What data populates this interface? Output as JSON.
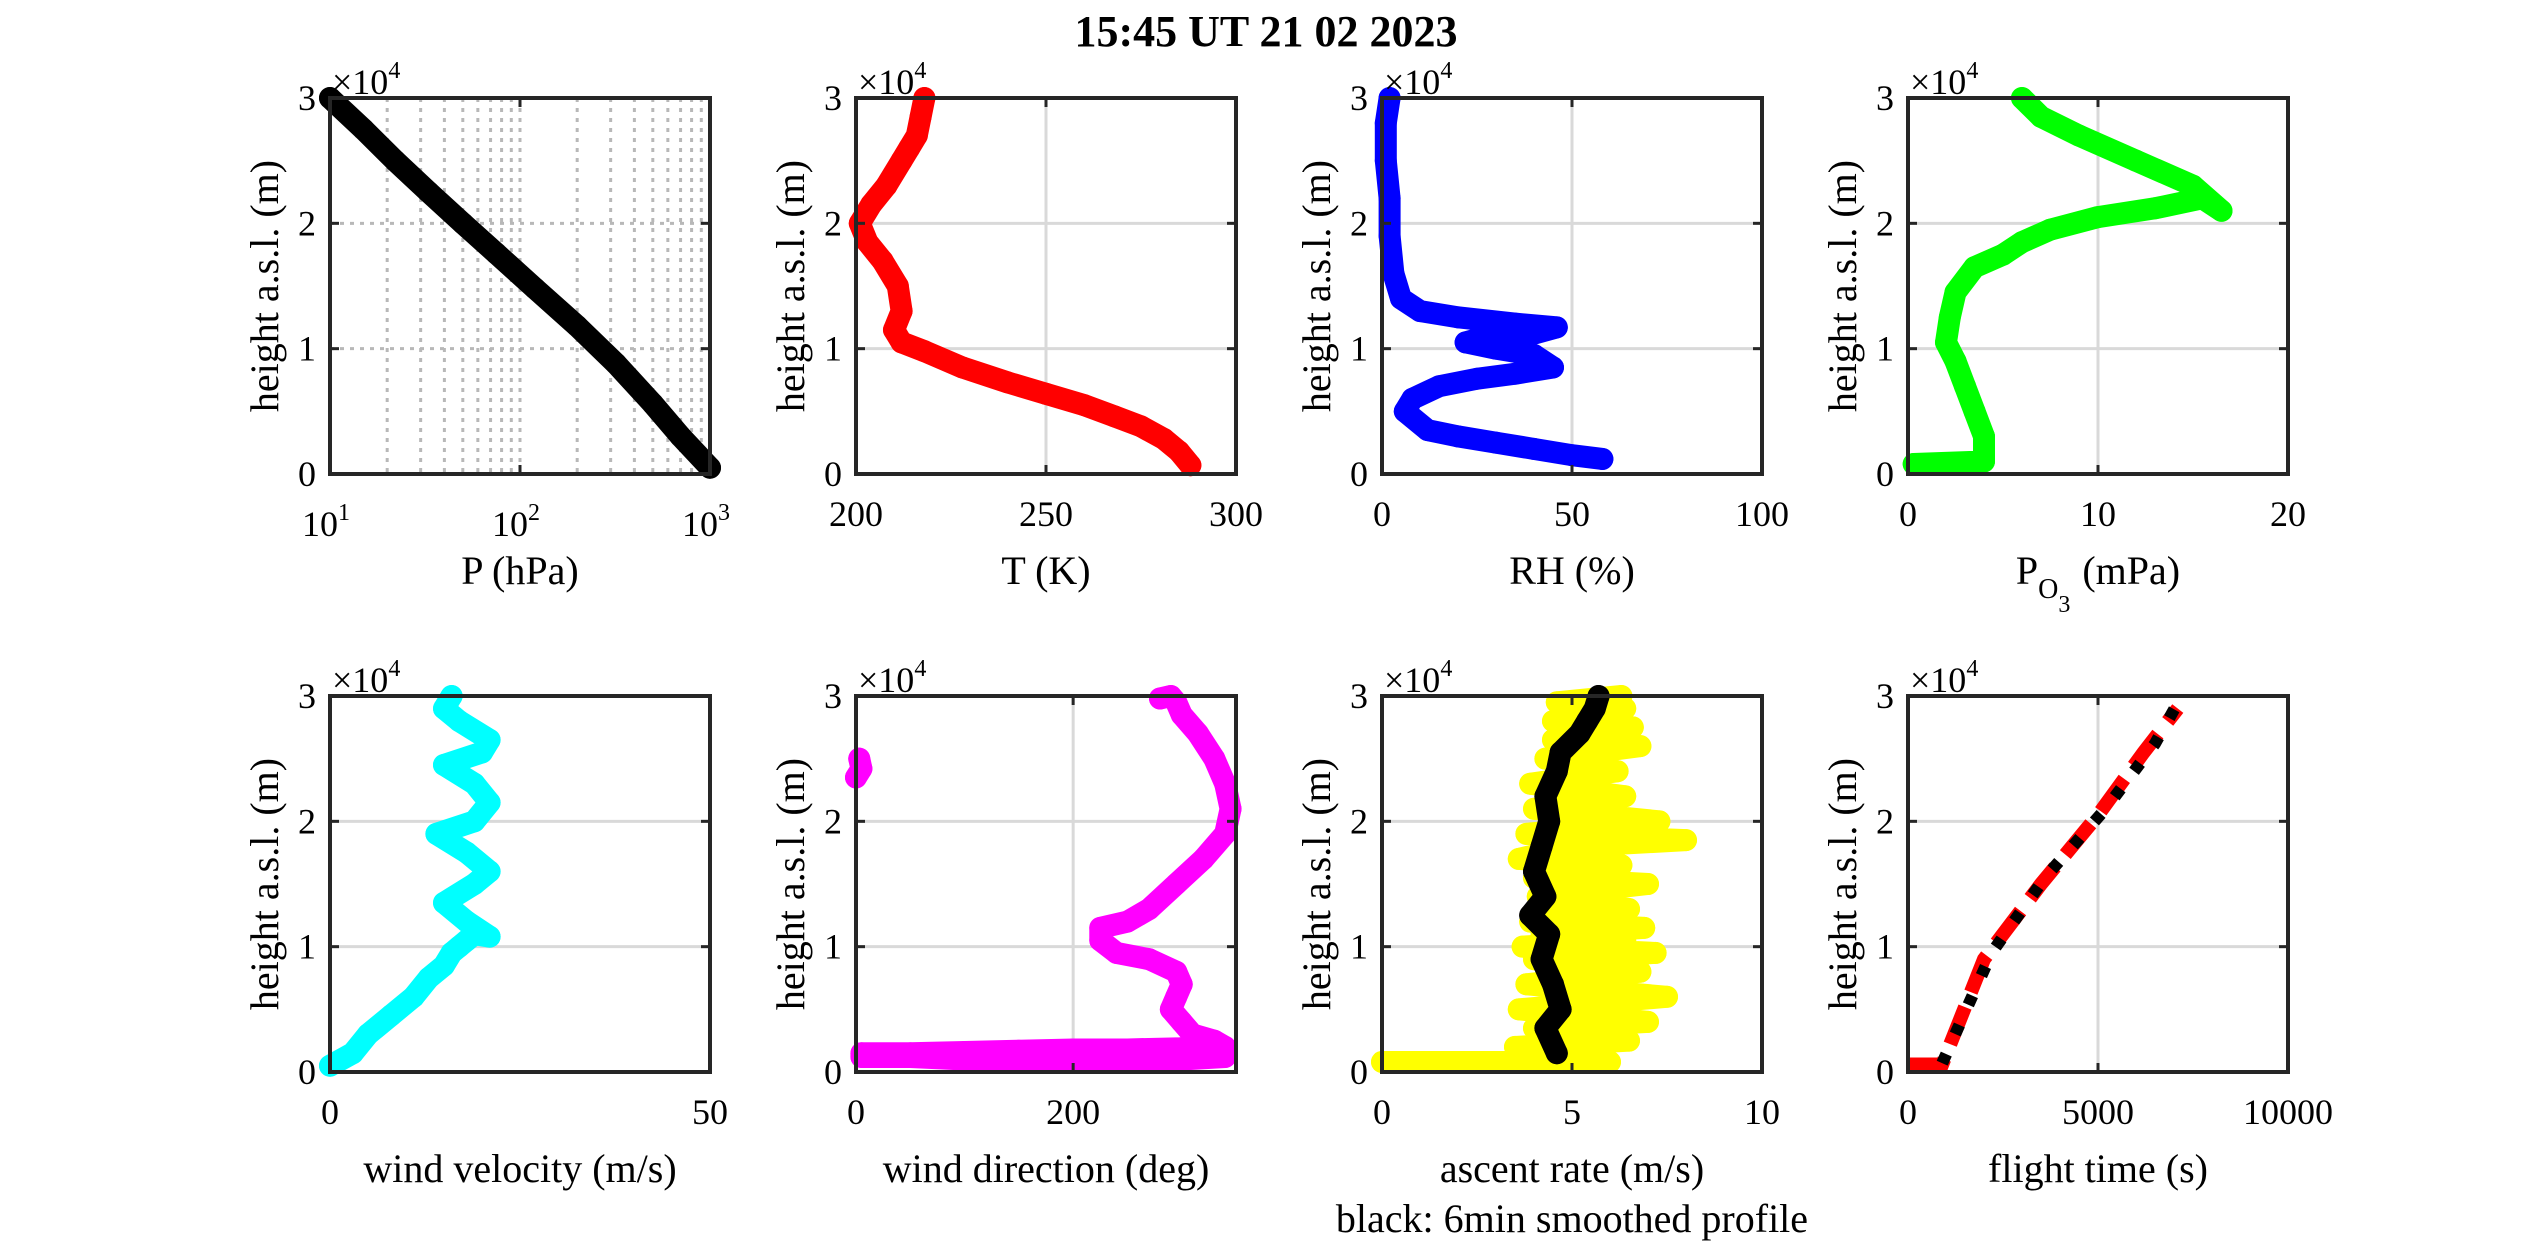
{
  "figure": {
    "title": "15:45 UT  21 02 2023"
  },
  "chart_data": [
    {
      "type": "scatter",
      "id": "pressure",
      "xlabel": "P (hPa)",
      "ylabel": "height a.s.l. (m)",
      "y_exponent": "×10",
      "y_exponent_power": "4",
      "xscale": "log",
      "xlim": [
        10,
        1000
      ],
      "ylim": [
        0,
        3
      ],
      "xticks": [
        {
          "v": 10,
          "base": "10",
          "pow": "1"
        },
        {
          "v": 100,
          "base": "10",
          "pow": "2"
        },
        {
          "v": 1000,
          "base": "10",
          "pow": "3"
        }
      ],
      "yticks": [
        {
          "v": 0,
          "label": "0"
        },
        {
          "v": 1,
          "label": "1"
        },
        {
          "v": 2,
          "label": "2"
        },
        {
          "v": 3,
          "label": "3"
        }
      ],
      "grid": "log-minor-dotted",
      "series": [
        {
          "color": "#000000",
          "x": [
            10,
            15,
            22,
            33,
            50,
            75,
            120,
            200,
            320,
            500,
            700,
            1000
          ],
          "y": [
            3,
            2.75,
            2.5,
            2.25,
            2,
            1.76,
            1.48,
            1.18,
            0.88,
            0.56,
            0.3,
            0.05
          ]
        }
      ]
    },
    {
      "type": "scatter",
      "id": "temperature",
      "xlabel": "T (K)",
      "ylabel": "height a.s.l. (m)",
      "y_exponent": "×10",
      "y_exponent_power": "4",
      "xlim": [
        200,
        300
      ],
      "ylim": [
        0,
        3
      ],
      "xticks": [
        {
          "v": 200,
          "label": "200"
        },
        {
          "v": 250,
          "label": "250"
        },
        {
          "v": 300,
          "label": "300"
        }
      ],
      "yticks": [
        {
          "v": 0,
          "label": "0"
        },
        {
          "v": 1,
          "label": "1"
        },
        {
          "v": 2,
          "label": "2"
        },
        {
          "v": 3,
          "label": "3"
        }
      ],
      "grid": "major",
      "series": [
        {
          "color": "#ff0000",
          "x": [
            288,
            285,
            281,
            275,
            268,
            260,
            250,
            240,
            228,
            218,
            212,
            210,
            212,
            211,
            207,
            203,
            201,
            204,
            208,
            212,
            214,
            216,
            217,
            218
          ],
          "y": [
            0.07,
            0.18,
            0.28,
            0.38,
            0.46,
            0.55,
            0.64,
            0.73,
            0.85,
            0.98,
            1.05,
            1.15,
            1.3,
            1.5,
            1.7,
            1.85,
            2,
            2.15,
            2.3,
            2.5,
            2.6,
            2.7,
            2.85,
            3
          ]
        }
      ]
    },
    {
      "type": "scatter",
      "id": "humidity",
      "xlabel": "RH (%)",
      "ylabel": "height a.s.l. (m)",
      "y_exponent": "×10",
      "y_exponent_power": "4",
      "xlim": [
        0,
        100
      ],
      "ylim": [
        0,
        3
      ],
      "xticks": [
        {
          "v": 0,
          "label": "0"
        },
        {
          "v": 50,
          "label": "50"
        },
        {
          "v": 100,
          "label": "100"
        }
      ],
      "yticks": [
        {
          "v": 0,
          "label": "0"
        },
        {
          "v": 1,
          "label": "1"
        },
        {
          "v": 2,
          "label": "2"
        },
        {
          "v": 3,
          "label": "3"
        }
      ],
      "grid": "major",
      "series": [
        {
          "color": "#0000ff",
          "x": [
            58,
            50,
            40,
            30,
            20,
            12,
            6,
            8,
            15,
            25,
            35,
            45,
            40,
            30,
            22,
            28,
            40,
            46,
            35,
            20,
            10,
            5,
            3,
            2,
            2,
            1,
            1,
            2
          ],
          "y": [
            0.12,
            0.15,
            0.2,
            0.25,
            0.3,
            0.35,
            0.5,
            0.6,
            0.7,
            0.76,
            0.8,
            0.85,
            0.95,
            1,
            1.05,
            1.1,
            1.12,
            1.17,
            1.2,
            1.25,
            1.3,
            1.4,
            1.6,
            1.9,
            2.2,
            2.5,
            2.8,
            3
          ]
        }
      ]
    },
    {
      "type": "scatter",
      "id": "ozone",
      "xlabel": "P",
      "xlabel_sub": "O",
      "xlabel_subsub": "3",
      "xlabel_unit": "(mPa)",
      "ylabel": "height a.s.l. (m)",
      "y_exponent": "×10",
      "y_exponent_power": "4",
      "xlim": [
        0,
        20
      ],
      "ylim": [
        0,
        3
      ],
      "xticks": [
        {
          "v": 0,
          "label": "0"
        },
        {
          "v": 10,
          "label": "10"
        },
        {
          "v": 20,
          "label": "20"
        }
      ],
      "yticks": [
        {
          "v": 0,
          "label": "0"
        },
        {
          "v": 1,
          "label": "1"
        },
        {
          "v": 2,
          "label": "2"
        },
        {
          "v": 3,
          "label": "3"
        }
      ],
      "grid": "major",
      "series": [
        {
          "color": "#00ff00",
          "x": [
            0.3,
            4,
            4,
            3.5,
            3,
            2.5,
            2,
            2.2,
            2.5,
            3.5,
            5,
            6,
            7.5,
            10,
            13,
            15.5,
            16.5,
            15,
            12,
            9,
            7,
            6
          ],
          "y": [
            0.08,
            0.1,
            0.3,
            0.5,
            0.7,
            0.9,
            1.05,
            1.25,
            1.45,
            1.65,
            1.75,
            1.85,
            1.95,
            2.05,
            2.12,
            2.2,
            2.1,
            2.3,
            2.5,
            2.7,
            2.85,
            3
          ]
        }
      ]
    },
    {
      "type": "scatter",
      "id": "wind-velocity",
      "xlabel": "wind velocity (m/s)",
      "ylabel": "height a.s.l. (m)",
      "y_exponent": "×10",
      "y_exponent_power": "4",
      "xlim": [
        0,
        50
      ],
      "ylim": [
        0,
        3
      ],
      "xticks": [
        {
          "v": 0,
          "label": "0"
        },
        {
          "v": 50,
          "label": "50"
        }
      ],
      "yticks": [
        {
          "v": 0,
          "label": "0"
        },
        {
          "v": 1,
          "label": "1"
        },
        {
          "v": 2,
          "label": "2"
        },
        {
          "v": 3,
          "label": "3"
        }
      ],
      "grid": "major",
      "series": [
        {
          "color": "#00ffff",
          "x": [
            0,
            3,
            5,
            8,
            11,
            13,
            15,
            16,
            17,
            18,
            19,
            21,
            18,
            15,
            19,
            21,
            18,
            14,
            19,
            21,
            19,
            15,
            20,
            21,
            17,
            15,
            16
          ],
          "y": [
            0.05,
            0.15,
            0.3,
            0.45,
            0.6,
            0.75,
            0.85,
            0.95,
            1,
            1.05,
            1.1,
            1.08,
            1.2,
            1.35,
            1.5,
            1.6,
            1.75,
            1.9,
            2,
            2.15,
            2.3,
            2.45,
            2.55,
            2.65,
            2.8,
            2.9,
            3
          ]
        }
      ]
    },
    {
      "type": "scatter",
      "id": "wind-direction",
      "xlabel": "wind direction (deg)",
      "ylabel": "height a.s.l. (m)",
      "y_exponent": "×10",
      "y_exponent_power": "4",
      "xlim": [
        0,
        350
      ],
      "ylim": [
        0,
        3
      ],
      "xticks": [
        {
          "v": 0,
          "label": "0"
        },
        {
          "v": 200,
          "label": "200"
        }
      ],
      "yticks": [
        {
          "v": 0,
          "label": "0"
        },
        {
          "v": 1,
          "label": "1"
        },
        {
          "v": 2,
          "label": "2"
        },
        {
          "v": 3,
          "label": "3"
        }
      ],
      "grid": "major",
      "series": [
        {
          "color": "#ff00ff",
          "x": [
            340,
            300,
            250,
            200,
            150,
            100,
            50,
            5,
            5,
            50,
            100,
            150,
            200,
            250,
            300,
            340,
            330,
            310,
            300,
            290,
            295,
            300,
            295,
            270,
            240,
            225,
            225,
            250,
            270,
            295,
            320,
            340,
            345,
            340,
            330,
            315,
            300,
            295,
            290,
            280
          ],
          "y": [
            0.12,
            0.1,
            0.1,
            0.1,
            0.1,
            0.1,
            0.12,
            0.12,
            0.15,
            0.15,
            0.16,
            0.17,
            0.18,
            0.18,
            0.19,
            0.2,
            0.25,
            0.3,
            0.4,
            0.5,
            0.6,
            0.7,
            0.8,
            0.9,
            0.95,
            1.05,
            1.15,
            1.2,
            1.3,
            1.5,
            1.7,
            1.9,
            2.1,
            2.3,
            2.5,
            2.7,
            2.85,
            2.95,
            3,
            2.98
          ]
        },
        {
          "color": "#ff00ff",
          "x": [
            0,
            5,
            3
          ],
          "y": [
            2.35,
            2.42,
            2.5
          ]
        }
      ]
    },
    {
      "type": "scatter",
      "id": "ascent-rate",
      "xlabel": "ascent rate (m/s)",
      "xlabel2": "black: 6min smoothed profile",
      "ylabel": "height a.s.l. (m)",
      "y_exponent": "×10",
      "y_exponent_power": "4",
      "xlim": [
        0,
        10
      ],
      "ylim": [
        0,
        3
      ],
      "xticks": [
        {
          "v": 0,
          "label": "0"
        },
        {
          "v": 5,
          "label": "5"
        },
        {
          "v": 10,
          "label": "10"
        }
      ],
      "yticks": [
        {
          "v": 0,
          "label": "0"
        },
        {
          "v": 1,
          "label": "1"
        },
        {
          "v": 2,
          "label": "2"
        },
        {
          "v": 3,
          "label": "3"
        }
      ],
      "grid": "major",
      "series": [
        {
          "color": "#ffff00",
          "x": [
            0,
            2,
            4,
            6,
            3.5,
            6.5,
            4,
            7,
            3.6,
            7.5,
            3.8,
            6.8,
            4,
            7.2,
            3.7,
            6.4,
            4.2,
            6.9,
            3.9,
            6.5,
            4.1,
            7,
            4,
            6.3,
            3.6,
            5,
            8,
            3.8,
            7.3,
            4,
            6.4,
            3.9,
            6.2,
            4.3,
            6.8,
            4.5,
            6.6,
            4.5,
            6.4,
            4.6,
            6.3
          ],
          "y": [
            0.08,
            0.08,
            0.08,
            0.08,
            0.2,
            0.25,
            0.35,
            0.4,
            0.5,
            0.6,
            0.7,
            0.8,
            0.9,
            0.95,
            1,
            1.05,
            1.1,
            1.15,
            1.2,
            1.3,
            1.4,
            1.5,
            1.55,
            1.65,
            1.7,
            1.8,
            1.85,
            1.9,
            2,
            2.1,
            2.2,
            2.3,
            2.4,
            2.5,
            2.6,
            2.65,
            2.75,
            2.8,
            2.9,
            2.95,
            3
          ]
        },
        {
          "color": "#000000",
          "x": [
            4.6,
            4.3,
            4.7,
            4.5,
            4.2,
            4.4,
            3.9,
            4.3,
            4,
            4.2,
            4.4,
            4.3,
            4.6,
            4.7,
            5.2,
            5.4,
            5.6,
            5.7
          ],
          "y": [
            0.15,
            0.35,
            0.5,
            0.7,
            0.9,
            1.1,
            1.25,
            1.4,
            1.6,
            1.8,
            2,
            2.2,
            2.4,
            2.55,
            2.7,
            2.8,
            2.9,
            3
          ]
        }
      ]
    },
    {
      "type": "line",
      "id": "flight-time",
      "xlabel": "flight time (s)",
      "ylabel": "height a.s.l. (m)",
      "y_exponent": "×10",
      "y_exponent_power": "4",
      "xlim": [
        0,
        10000
      ],
      "ylim": [
        0,
        3
      ],
      "xticks": [
        {
          "v": 0,
          "label": "0"
        },
        {
          "v": 5000,
          "label": "5000"
        },
        {
          "v": 10000,
          "label": "10000"
        }
      ],
      "yticks": [
        {
          "v": 0,
          "label": "0"
        },
        {
          "v": 1,
          "label": "1"
        },
        {
          "v": 2,
          "label": "2"
        },
        {
          "v": 3,
          "label": "3"
        }
      ],
      "grid": "major",
      "series": [
        {
          "color": "#ff0000",
          "style": "red-dash",
          "x": [
            0,
            900,
            2000,
            3500,
            5000,
            6200,
            7100
          ],
          "y": [
            0.06,
            0.06,
            0.9,
            1.5,
            2.05,
            2.55,
            2.9
          ]
        },
        {
          "color": "#000000",
          "style": "black-dash",
          "x": [
            900,
            2200,
            3600,
            5200,
            6500,
            7200
          ],
          "y": [
            0.07,
            0.95,
            1.55,
            2.1,
            2.62,
            3
          ]
        }
      ]
    }
  ]
}
